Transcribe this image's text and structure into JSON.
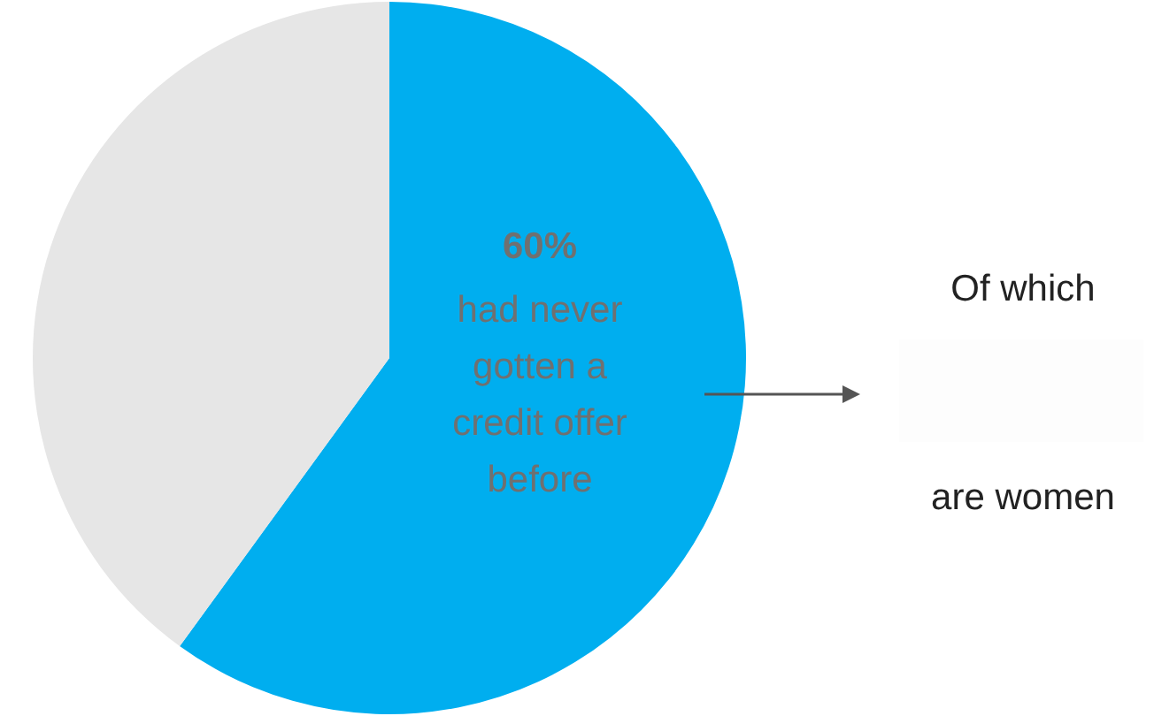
{
  "chart_data": {
    "type": "pie",
    "categories": [
      null,
      null
    ],
    "values": [
      60,
      40
    ],
    "colors": [
      "#00aeef",
      "#e6e6e6"
    ],
    "value_labels": [
      "60%",
      null
    ],
    "annotations": [
      "had never gotten a credit offer before",
      "Of which",
      "are women"
    ],
    "legend": false
  }
}
